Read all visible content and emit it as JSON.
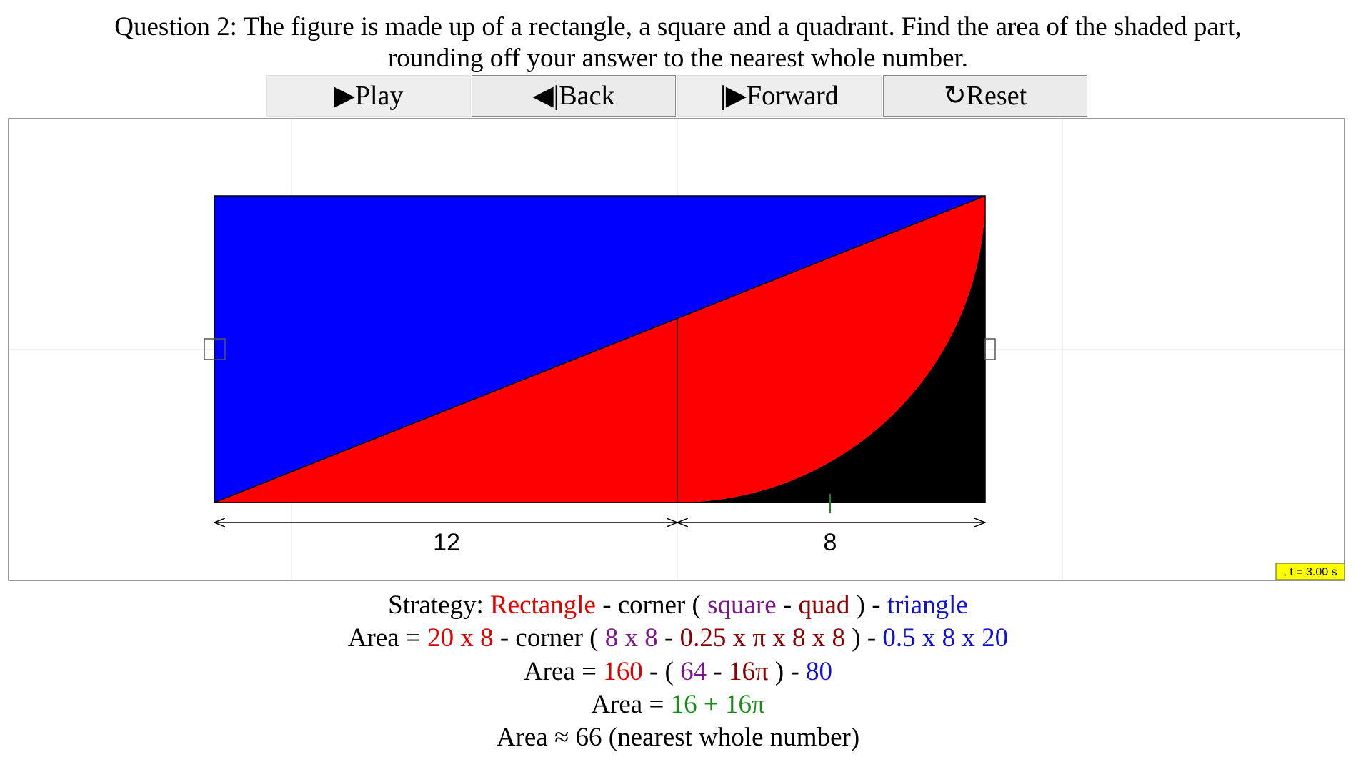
{
  "question": {
    "line1": "Question 2: The figure is made up of a rectangle, a square and a quadrant. Find the area of the shaded part,",
    "line2": "rounding off your answer to the nearest whole number."
  },
  "buttons": [
    "▶Play",
    "◀|Back",
    "|▶Forward",
    "↻Reset"
  ],
  "figure": {
    "dimension_left": "12",
    "dimension_right": "8",
    "time_label": ", t = 3.00 s"
  },
  "strategy": [
    [
      {
        "text": "Strategy: ",
        "color": "#000000"
      },
      {
        "text": "Rectangle",
        "color": "#e00000"
      },
      {
        "text": " - corner ( ",
        "color": "#000000"
      },
      {
        "text": "square",
        "color": "#7a1a8a"
      },
      {
        "text": " - ",
        "color": "#000000"
      },
      {
        "text": "quad",
        "color": "#8b0000"
      },
      {
        "text": " ) - ",
        "color": "#000000"
      },
      {
        "text": "triangle",
        "color": "#1010d0"
      }
    ],
    [
      {
        "text": "Area = ",
        "color": "#000000"
      },
      {
        "text": "20 x 8",
        "color": "#e00000"
      },
      {
        "text": " - corner ( ",
        "color": "#000000"
      },
      {
        "text": "8 x 8",
        "color": "#7a1a8a"
      },
      {
        "text": " - ",
        "color": "#000000"
      },
      {
        "text": "0.25 x π x 8 x 8",
        "color": "#8b0000"
      },
      {
        "text": " ) - ",
        "color": "#000000"
      },
      {
        "text": "0.5 x 8 x 20",
        "color": "#1010d0"
      }
    ],
    [
      {
        "text": "Area = ",
        "color": "#000000"
      },
      {
        "text": "160",
        "color": "#e00000"
      },
      {
        "text": " - ( ",
        "color": "#000000"
      },
      {
        "text": "64",
        "color": "#7a1a8a"
      },
      {
        "text": " - ",
        "color": "#000000"
      },
      {
        "text": "16π",
        "color": "#8b0000"
      },
      {
        "text": " ) - ",
        "color": "#000000"
      },
      {
        "text": "80",
        "color": "#1010d0"
      }
    ],
    [
      {
        "text": "Area = ",
        "color": "#000000"
      },
      {
        "text": "16 + 16π",
        "color": "#1a8a1a"
      }
    ],
    [
      {
        "text": "Area ≈ 66 (nearest whole number)",
        "color": "#000000"
      }
    ]
  ]
}
